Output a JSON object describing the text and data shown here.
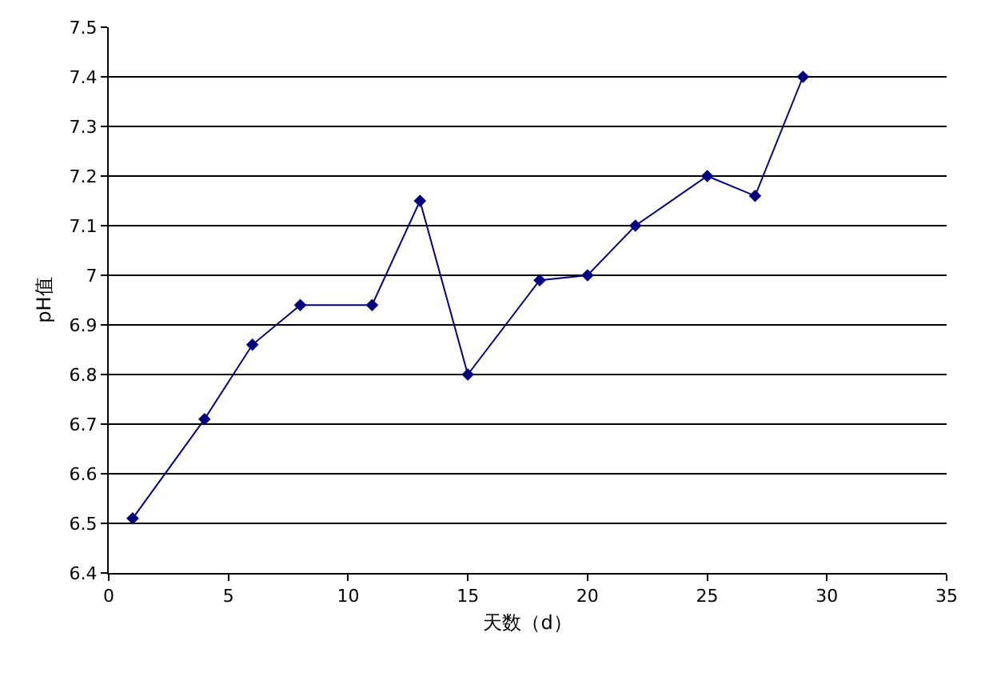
{
  "chart_data": {
    "type": "line",
    "xlabel": "天数（d）",
    "ylabel": "pH值",
    "x": [
      1,
      4,
      6,
      8,
      11,
      13,
      15,
      18,
      20,
      22,
      25,
      27,
      29
    ],
    "series": [
      {
        "color": "#000080",
        "values": [
          6.51,
          6.71,
          6.86,
          6.94,
          6.94,
          7.15,
          6.8,
          6.99,
          7.0,
          7.1,
          7.2,
          7.16,
          7.4
        ]
      }
    ],
    "xlim": [
      0,
      35
    ],
    "xticks": [
      0,
      5,
      10,
      15,
      20,
      25,
      30,
      35
    ],
    "ylim": [
      6.4,
      7.5
    ],
    "yticks": [
      6.4,
      6.5,
      6.6,
      6.7,
      6.8,
      6.9,
      7,
      7.1,
      7.2,
      7.3,
      7.4,
      7.5
    ],
    "grid": "y",
    "marker": "diamond",
    "line_style": "solid"
  }
}
